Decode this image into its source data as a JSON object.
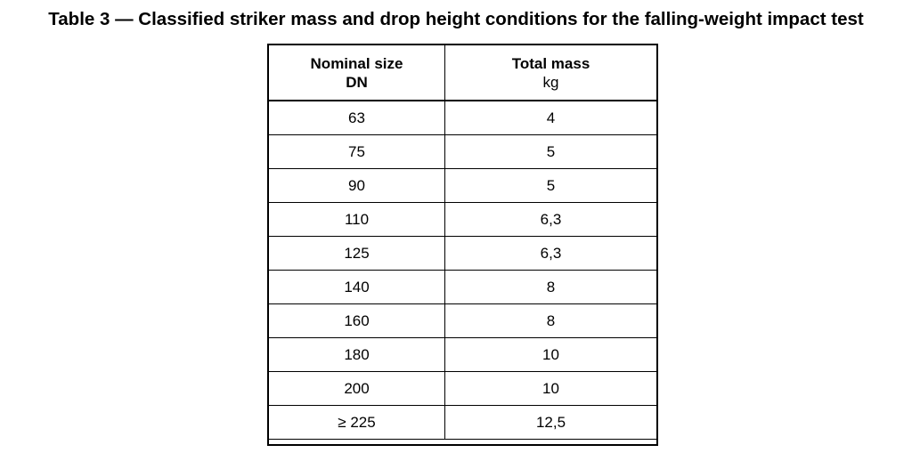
{
  "caption": "Table 3 — Classified striker mass and drop height conditions for the falling-weight impact test",
  "table": {
    "headers": [
      {
        "label": "Nominal size",
        "unit": "DN"
      },
      {
        "label": "Total mass",
        "unit": "kg"
      }
    ],
    "rows": [
      {
        "size": "63",
        "mass": "4"
      },
      {
        "size": "75",
        "mass": "5"
      },
      {
        "size": "90",
        "mass": "5"
      },
      {
        "size": "110",
        "mass": "6,3"
      },
      {
        "size": "125",
        "mass": "6,3"
      },
      {
        "size": "140",
        "mass": "8"
      },
      {
        "size": "160",
        "mass": "8"
      },
      {
        "size": "180",
        "mass": "10"
      },
      {
        "size": "200",
        "mass": "10"
      },
      {
        "size": "≥ 225",
        "mass": "12,5"
      }
    ]
  }
}
